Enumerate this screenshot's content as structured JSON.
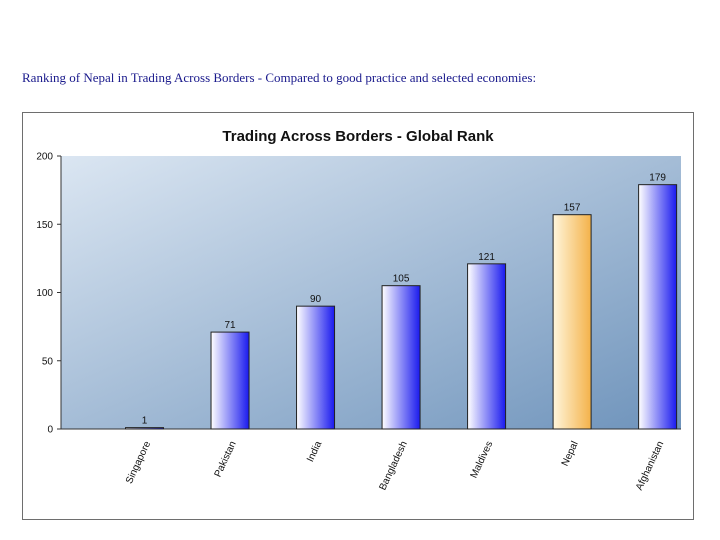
{
  "caption": "Ranking of Nepal in Trading Across Borders -  Compared to good practice and selected economies:",
  "chart_data": {
    "type": "bar",
    "title": "Trading Across Borders - Global Rank",
    "xlabel": "",
    "ylabel": "",
    "ylim": [
      0,
      200
    ],
    "yticks": [
      "0",
      "50",
      "100",
      "150",
      "200"
    ],
    "categories": [
      "Singapore",
      "Pakistan",
      "India",
      "Bangladesh",
      "Maldives",
      "Nepal",
      "Afghanistan"
    ],
    "values": [
      1,
      71,
      90,
      105,
      121,
      157,
      179
    ],
    "data_labels": [
      "1",
      "71",
      "90",
      "105",
      "121",
      "157",
      "179"
    ],
    "highlight_category": "Nepal",
    "colors": {
      "bar_dark": "#1a1aee",
      "bar_light": "#ffffff",
      "highlight_dark": "#f4b24a",
      "highlight_light": "#fff6dc",
      "plot_bg_light": "#dbe6f2",
      "plot_bg_dark": "#6e93bb"
    },
    "grid": false,
    "legend": "none"
  }
}
